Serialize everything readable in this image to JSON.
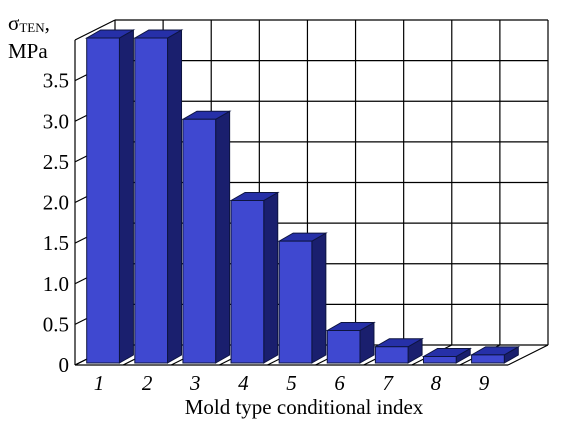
{
  "chart_data": {
    "type": "bar",
    "ylabel_main": "σ",
    "ylabel_sub": "TEN",
    "ylabel_suffix": ",",
    "ylabel_unit": "MPa",
    "xlabel": "Mold type conditional index",
    "categories": [
      "1",
      "2",
      "3",
      "4",
      "5",
      "6",
      "7",
      "8",
      "9"
    ],
    "values": [
      4.0,
      4.0,
      3.0,
      2.0,
      1.5,
      0.4,
      0.2,
      0.08,
      0.1
    ],
    "y_ticks": [
      "0",
      "0.5",
      "1.0",
      "1.5",
      "2.0",
      "2.5",
      "3.0",
      "3.5"
    ],
    "y_tick_values": [
      0,
      0.5,
      1.0,
      1.5,
      2.0,
      2.5,
      3.0,
      3.5
    ],
    "ylim": [
      0,
      4.0
    ],
    "grid": true,
    "three_d": true,
    "colors": {
      "bar_front": "#3f48d0",
      "bar_top": "#2630a8",
      "bar_side": "#1a1f6e",
      "grid": "#000000"
    }
  }
}
